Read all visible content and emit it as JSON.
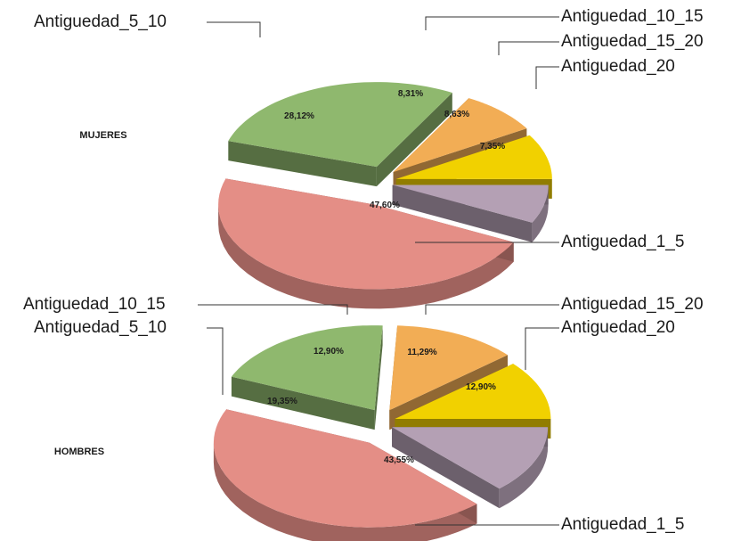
{
  "chart_data": [
    {
      "type": "pie",
      "group_label": "MUJERES",
      "slices": [
        {
          "key": "s1_5",
          "category": "Antiguedad_1_5",
          "value": 47.6,
          "label": "47,60%"
        },
        {
          "key": "s5_10",
          "category": "Antiguedad_5_10",
          "value": 28.12,
          "label": "28,12%"
        },
        {
          "key": "s10_15",
          "category": "Antiguedad_10_15",
          "value": 8.31,
          "label": "8,31%"
        },
        {
          "key": "s15_20",
          "category": "Antiguedad_15_20",
          "value": 8.63,
          "label": "8,63%"
        },
        {
          "key": "s20",
          "category": "Antiguedad_20",
          "value": 7.35,
          "label": "7,35%"
        }
      ]
    },
    {
      "type": "pie",
      "group_label": "HOMBRES",
      "slices": [
        {
          "key": "s1_5",
          "category": "Antiguedad_1_5",
          "value": 43.55,
          "label": "43,55%"
        },
        {
          "key": "s5_10",
          "category": "Antiguedad_5_10",
          "value": 19.35,
          "label": "19,35%"
        },
        {
          "key": "s10_15",
          "category": "Antiguedad_10_15",
          "value": 12.9,
          "label": "12,90%"
        },
        {
          "key": "s15_20",
          "category": "Antiguedad_15_20",
          "value": 11.29,
          "label": "11,29%"
        },
        {
          "key": "s20",
          "category": "Antiguedad_20",
          "value": 12.9,
          "label": "12,90%"
        }
      ]
    }
  ],
  "colors": {
    "s1_5": "#e48e86",
    "s5_10": "#8fb86e",
    "s10_15": "#f2ad55",
    "s15_20": "#f1d100",
    "s20": "#b4a0b4"
  }
}
